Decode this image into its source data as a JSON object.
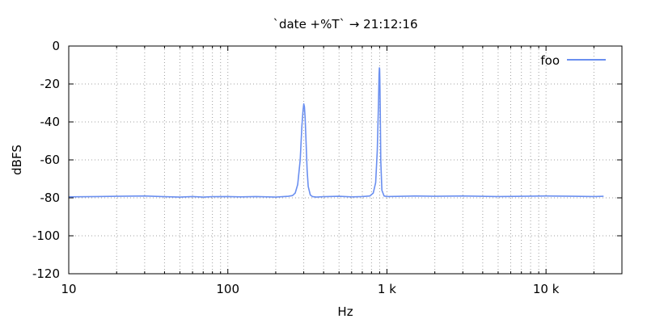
{
  "chart_data": {
    "type": "line",
    "title": "`date +%T` → 21:12:16",
    "xlabel": "Hz",
    "ylabel": "dBFS",
    "xscale": "log",
    "xlim": [
      10,
      30000
    ],
    "ylim": [
      -120,
      0
    ],
    "xticks": [
      {
        "value": 10,
        "label": "10"
      },
      {
        "value": 100,
        "label": "100"
      },
      {
        "value": 1000,
        "label": "1 k"
      },
      {
        "value": 10000,
        "label": "10 k"
      }
    ],
    "yticks": [
      {
        "value": 0,
        "label": "0"
      },
      {
        "value": -20,
        "label": "-20"
      },
      {
        "value": -40,
        "label": "-40"
      },
      {
        "value": -60,
        "label": "-60"
      },
      {
        "value": -80,
        "label": "-80"
      },
      {
        "value": -100,
        "label": "-100"
      },
      {
        "value": -120,
        "label": "-120"
      }
    ],
    "grid": true,
    "legend": "top-right",
    "series": [
      {
        "name": "foo",
        "color": "#6a8ff0",
        "x": [
          10,
          15,
          20,
          30,
          40,
          50,
          60,
          70,
          80,
          100,
          120,
          150,
          180,
          200,
          220,
          240,
          255,
          265,
          275,
          285,
          292,
          297,
          300,
          303,
          306,
          310,
          315,
          320,
          330,
          340,
          360,
          400,
          500,
          600,
          700,
          780,
          820,
          850,
          870,
          885,
          892,
          897,
          900,
          903,
          908,
          915,
          930,
          960,
          1000,
          1500,
          2000,
          3000,
          5000,
          8000,
          10000,
          15000,
          20000,
          23000
        ],
        "y": [
          -79.5,
          -79.3,
          -79.2,
          -79.0,
          -79.4,
          -79.6,
          -79.3,
          -79.6,
          -79.4,
          -79.3,
          -79.5,
          -79.3,
          -79.5,
          -79.6,
          -79.4,
          -79.2,
          -78.8,
          -77.5,
          -73.0,
          -60.0,
          -42.0,
          -34.0,
          -30.5,
          -32.0,
          -38.0,
          -50.0,
          -65.0,
          -74.0,
          -78.5,
          -79.3,
          -79.6,
          -79.4,
          -79.2,
          -79.5,
          -79.3,
          -79.0,
          -77.5,
          -72.0,
          -55.0,
          -30.0,
          -15.0,
          -11.5,
          -12.0,
          -18.0,
          -35.0,
          -60.0,
          -76.0,
          -79.0,
          -79.3,
          -79.0,
          -79.2,
          -79.0,
          -79.3,
          -79.1,
          -79.0,
          -79.2,
          -79.3,
          -79.2
        ]
      }
    ]
  }
}
